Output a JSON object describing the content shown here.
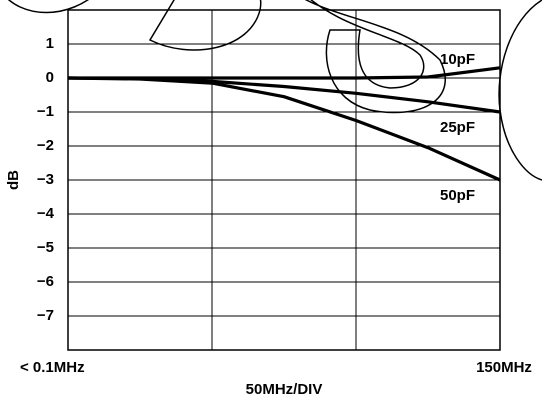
{
  "chart_data": {
    "type": "line",
    "ylabel": "dB",
    "xlabel": "50MHz/DIV",
    "x": [
      0,
      25,
      50,
      75,
      100,
      125,
      150
    ],
    "series": [
      {
        "name": "10pF",
        "color": "#000000",
        "values": [
          0,
          0,
          0,
          0,
          0,
          0.03,
          0.3
        ]
      },
      {
        "name": "25pF",
        "color": "#000000",
        "values": [
          0,
          -0.02,
          -0.1,
          -0.25,
          -0.45,
          -0.7,
          -1.0
        ]
      },
      {
        "name": "50pF",
        "color": "#000000",
        "values": [
          0,
          -0.03,
          -0.15,
          -0.55,
          -1.25,
          -2.05,
          -3.0
        ]
      }
    ],
    "xlim": [
      0,
      150
    ],
    "xticks": [
      {
        "value": 0,
        "label": "< 0.1MHz"
      },
      {
        "value": 50,
        "label": null
      },
      {
        "value": 100,
        "label": null
      },
      {
        "value": 150,
        "label": "150MHz"
      }
    ],
    "ylim": [
      -8,
      2
    ],
    "yticks": [
      {
        "value": 1,
        "label": "1"
      },
      {
        "value": 0,
        "label": "0"
      },
      {
        "value": -1,
        "label": "−1"
      },
      {
        "value": -2,
        "label": "−2"
      },
      {
        "value": -3,
        "label": "−3"
      },
      {
        "value": -4,
        "label": "−4"
      },
      {
        "value": -5,
        "label": "−5"
      },
      {
        "value": -6,
        "label": "−6"
      },
      {
        "value": -7,
        "label": "−7"
      }
    ],
    "grid": true
  }
}
